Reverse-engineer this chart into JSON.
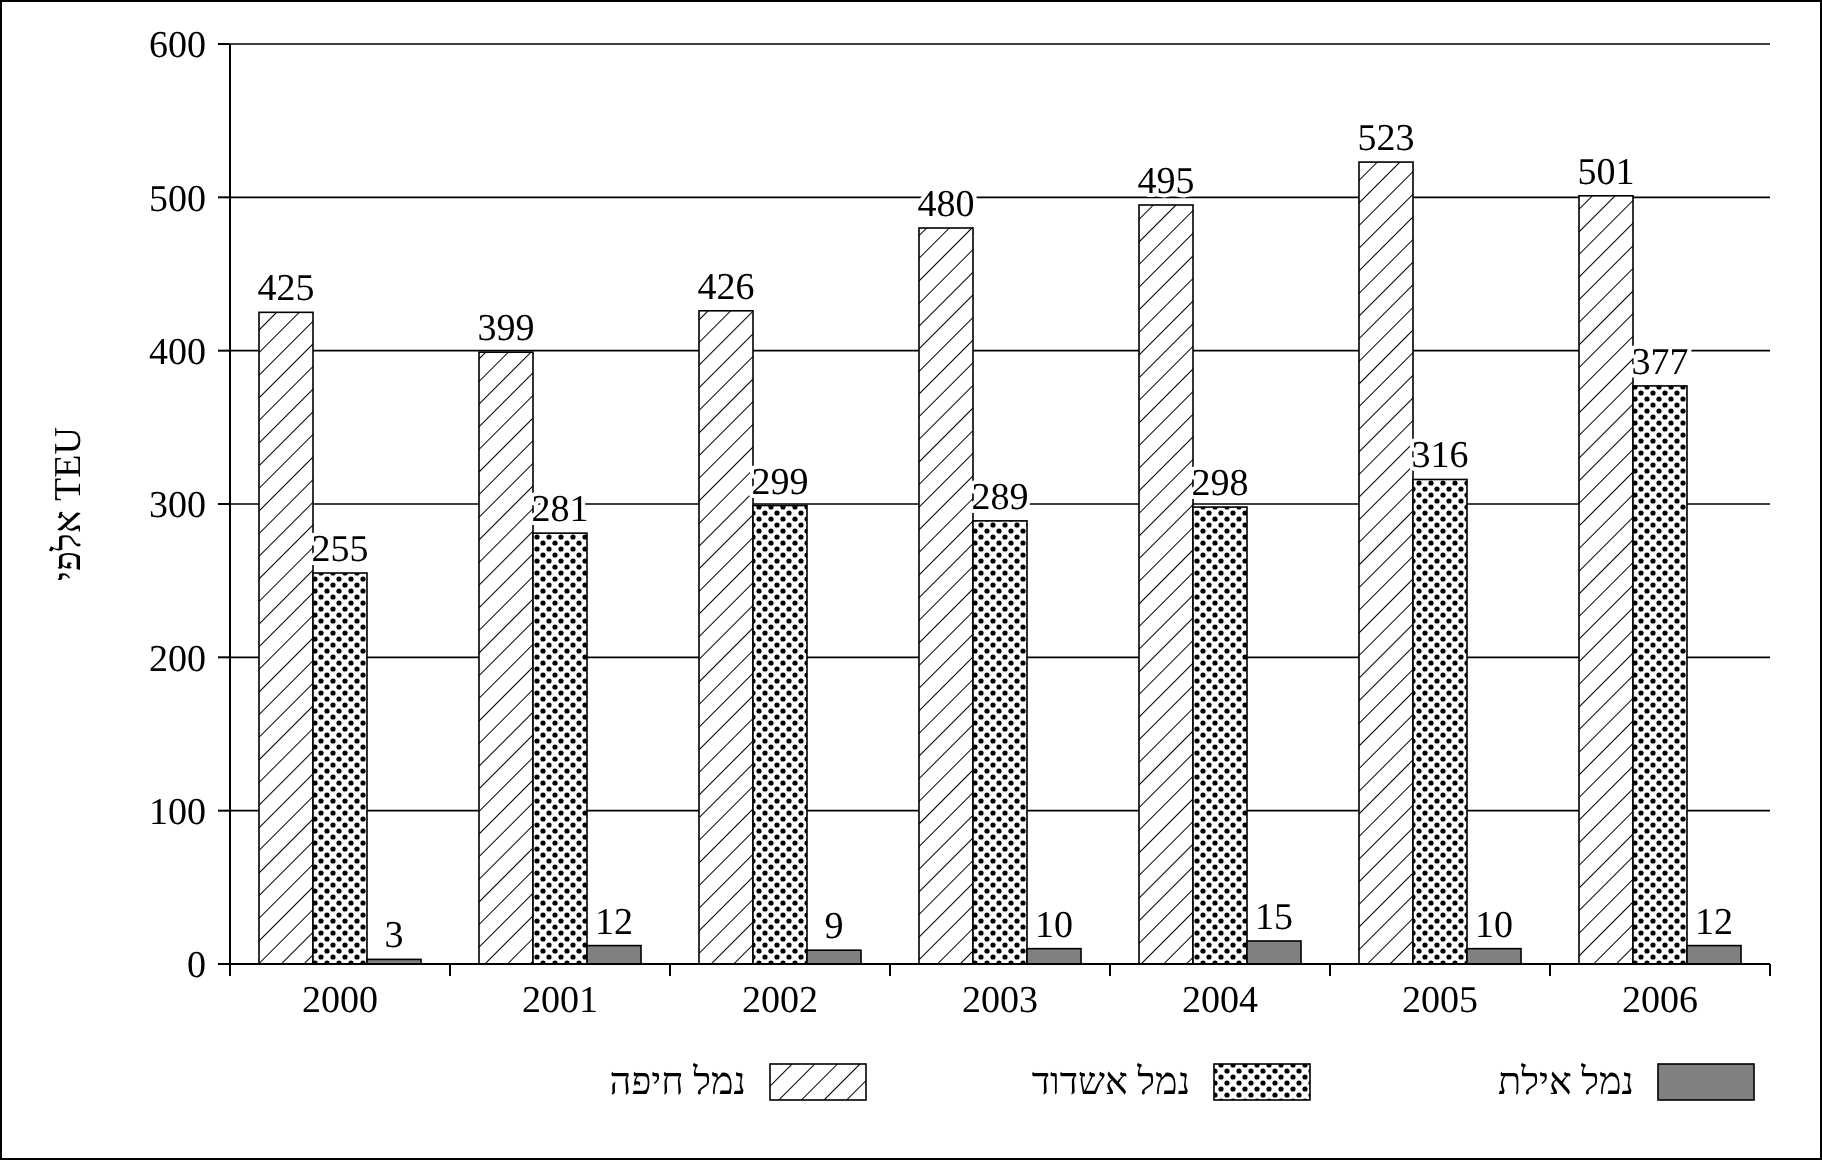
{
  "chart_data": {
    "type": "bar",
    "ylabel": "אלפי TEU",
    "categories": [
      "2000",
      "2001",
      "2002",
      "2003",
      "2004",
      "2005",
      "2006"
    ],
    "series": [
      {
        "name": "נמל חיפה",
        "color": "#000000",
        "values": [
          425,
          399,
          426,
          480,
          495,
          523,
          501
        ]
      },
      {
        "name": "נמל אשדוד",
        "color": "#000000",
        "values": [
          255,
          281,
          299,
          289,
          298,
          316,
          377
        ]
      },
      {
        "name": "נמל אילת",
        "color": "#808080",
        "values": [
          3,
          12,
          9,
          10,
          15,
          10,
          12
        ]
      }
    ],
    "ylim": [
      0,
      600
    ],
    "yticks": [
      0,
      100,
      200,
      300,
      400,
      500,
      600
    ],
    "grid": "y",
    "legend": "bottom",
    "data_labels": true
  }
}
